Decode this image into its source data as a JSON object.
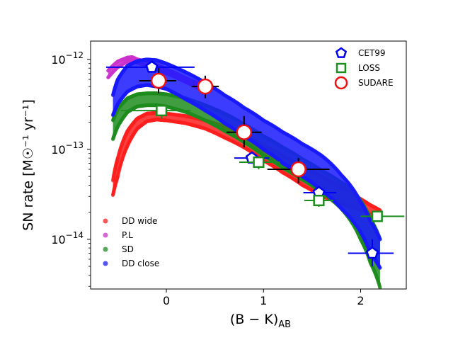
{
  "chart_data": {
    "type": "scatter",
    "xlabel_main": "(B − K)",
    "xlabel_sub": "AB",
    "ylabel": "SN rate [M☉⁻¹ yr⁻¹]",
    "yscale": "log",
    "xlim": [
      -0.78,
      2.47
    ],
    "ylim": [
      2.8e-15,
      1.6e-12
    ],
    "x_ticks": [
      {
        "value": 0,
        "label": "0"
      },
      {
        "value": 1,
        "label": "1"
      },
      {
        "value": 2,
        "label": "2"
      }
    ],
    "y_ticks": [
      {
        "value": 1e-12,
        "base": "10",
        "exp": "−12"
      },
      {
        "value": 1e-13,
        "base": "10",
        "exp": "−13"
      },
      {
        "value": 1e-14,
        "base": "10",
        "exp": "−14"
      }
    ],
    "model_bands": [
      {
        "name": "DD wide",
        "color": "#ff2020",
        "x": [
          -0.55,
          -0.5,
          -0.4,
          -0.3,
          -0.2,
          -0.1,
          0.0,
          0.2,
          0.4,
          0.6,
          0.8,
          1.0,
          1.2,
          1.4,
          1.6,
          1.8,
          2.0,
          2.1,
          2.2
        ],
        "upper": [
          4.5e-14,
          8e-14,
          1.6e-13,
          2.2e-13,
          2.5e-13,
          2.55e-13,
          2.5e-13,
          2.35e-13,
          2.1e-13,
          1.8e-13,
          1.45e-13,
          1.1e-13,
          8.5e-14,
          6.5e-14,
          5e-14,
          3.8e-14,
          2.8e-14,
          2.4e-14,
          2.1e-14
        ],
        "lower": [
          3.1e-14,
          5e-14,
          1.1e-13,
          1.7e-13,
          2.05e-13,
          2.15e-13,
          2.1e-13,
          1.95e-13,
          1.7e-13,
          1.35e-13,
          1.05e-13,
          7.5e-14,
          5.5e-14,
          4e-14,
          3e-14,
          2.5e-14,
          2.1e-14,
          1.9e-14,
          1.8e-14
        ]
      },
      {
        "name": "P.L",
        "color": "#cc33cc",
        "x": [
          -0.6,
          -0.5,
          -0.4,
          -0.35,
          -0.3,
          -0.2,
          -0.1,
          0.0,
          0.2,
          0.4
        ],
        "upper": [
          7.5e-13,
          9.5e-13,
          1.05e-12,
          1.06e-12,
          1e-12,
          9.5e-13,
          8.7e-13,
          7.8e-13,
          6.2e-13,
          5e-13
        ],
        "lower": [
          6.3e-13,
          8.2e-13,
          9.5e-13,
          9.6e-13,
          9.2e-13,
          8.6e-13,
          7.8e-13,
          7e-13,
          5.6e-13,
          4.4e-13
        ]
      },
      {
        "name": "SD",
        "color": "#1e8c1e",
        "x": [
          -0.55,
          -0.5,
          -0.4,
          -0.3,
          -0.2,
          -0.1,
          0.0,
          0.2,
          0.4,
          0.6,
          0.8,
          1.0,
          1.2,
          1.4,
          1.6,
          1.8,
          1.9,
          2.0,
          2.1,
          2.2
        ],
        "upper": [
          2.1e-13,
          2.8e-13,
          3.7e-13,
          4.1e-13,
          4.2e-13,
          4.2e-13,
          4.1e-13,
          3.7e-13,
          3.1e-13,
          2.5e-13,
          1.9e-13,
          1.4e-13,
          1.05e-13,
          7.8e-14,
          5.8e-14,
          4.3e-14,
          3.6e-14,
          2.7e-14,
          1.7e-14,
          1e-14
        ],
        "lower": [
          1.3e-13,
          1.8e-13,
          2.6e-13,
          3e-13,
          3.1e-13,
          3.1e-13,
          3e-13,
          2.6e-13,
          2.1e-13,
          1.6e-13,
          1.2e-13,
          8.5e-14,
          6.2e-14,
          4.6e-14,
          3.3e-14,
          2.2e-14,
          1.6e-14,
          1e-14,
          5.5e-15,
          2.9e-15
        ]
      },
      {
        "name": "DD close",
        "color": "#1a1aff",
        "x": [
          -0.55,
          -0.5,
          -0.4,
          -0.3,
          -0.2,
          -0.1,
          0.0,
          0.2,
          0.4,
          0.6,
          0.8,
          1.0,
          1.2,
          1.4,
          1.6,
          1.8,
          2.0,
          2.1,
          2.2
        ],
        "upper": [
          4e-13,
          6e-13,
          8.5e-13,
          9.6e-13,
          1e-12,
          9.8e-13,
          9e-13,
          7.2e-13,
          5.5e-13,
          4e-13,
          2.9e-13,
          2.1e-13,
          1.55e-13,
          1.15e-13,
          8.5e-14,
          5.2e-14,
          2.6e-14,
          1.6e-14,
          1e-14
        ],
        "lower": [
          2.4e-13,
          3.2e-13,
          4.4e-13,
          5e-13,
          5.2e-13,
          5e-13,
          4.7e-13,
          3.6e-13,
          2.7e-13,
          1.95e-13,
          1.4e-13,
          1e-13,
          7e-14,
          5e-14,
          3.5e-14,
          2.2e-14,
          1.2e-14,
          7e-15,
          4.8e-15
        ]
      }
    ],
    "observations": [
      {
        "name": "CET99",
        "marker": "pentagon",
        "color": "#0000ee",
        "points": [
          {
            "x": -0.15,
            "y": 8.2e-13,
            "xerr": [
              0.47,
              0.44
            ],
            "yerr": [
              0,
              0
            ]
          },
          {
            "x": 0.88,
            "y": 8e-14,
            "xerr": [
              0.18,
              0.18
            ],
            "yerr": [
              0,
              0
            ]
          },
          {
            "x": 1.57,
            "y": 3.3e-14,
            "xerr": [
              0.16,
              0.18
            ],
            "yerr": [
              0,
              0
            ]
          },
          {
            "x": 2.12,
            "y": 7e-15,
            "xerr": [
              0.25,
              0.22
            ],
            "yerr": [
              2e-15,
              3e-15
            ]
          }
        ]
      },
      {
        "name": "LOSS",
        "marker": "square",
        "color": "#1e8c1e",
        "points": [
          {
            "x": -0.05,
            "y": 2.7e-13,
            "xerr": [
              0.42,
              0.3
            ],
            "yerr": [
              5e-14,
              5e-14
            ]
          },
          {
            "x": 0.95,
            "y": 7.2e-14,
            "xerr": [
              0.2,
              0.22
            ],
            "yerr": [
              1.2e-14,
              1.2e-14
            ]
          },
          {
            "x": 1.57,
            "y": 2.7e-14,
            "xerr": [
              0.15,
              0.15
            ],
            "yerr": [
              4e-15,
              4e-15
            ]
          },
          {
            "x": 2.17,
            "y": 1.8e-14,
            "xerr": [
              0.17,
              0.28
            ],
            "yerr": [
              2e-15,
              2e-15
            ]
          }
        ]
      },
      {
        "name": "SUDARE",
        "marker": "circle",
        "color": "#ee1111",
        "points": [
          {
            "x": -0.08,
            "y": 5.8e-13,
            "xerr": [
              0.2,
              0.18
            ],
            "yerr": [
              1.6e-13,
              2.2e-13
            ]
          },
          {
            "x": 0.4,
            "y": 5e-13,
            "xerr": [
              0.14,
              0.14
            ],
            "yerr": [
              1.3e-13,
              1.6e-13
            ]
          },
          {
            "x": 0.8,
            "y": 1.55e-13,
            "xerr": [
              0.18,
              0.18
            ],
            "yerr": [
              5e-14,
              8e-14
            ]
          },
          {
            "x": 1.36,
            "y": 6e-14,
            "xerr": [
              0.32,
              0.32
            ],
            "yerr": [
              1.8e-14,
              2e-14
            ]
          }
        ]
      }
    ],
    "legend_lower_left": [
      {
        "label": "DD wide",
        "color": "#ff2020"
      },
      {
        "label": "P.L",
        "color": "#cc33cc"
      },
      {
        "label": "SD",
        "color": "#1e8c1e"
      },
      {
        "label": "DD close",
        "color": "#1a1aff"
      }
    ],
    "legend_upper_right": [
      {
        "label": "CET99",
        "marker": "pentagon",
        "color": "#0000ee"
      },
      {
        "label": "LOSS",
        "marker": "square",
        "color": "#1e8c1e"
      },
      {
        "label": "SUDARE",
        "marker": "circle",
        "color": "#ee1111"
      }
    ]
  }
}
